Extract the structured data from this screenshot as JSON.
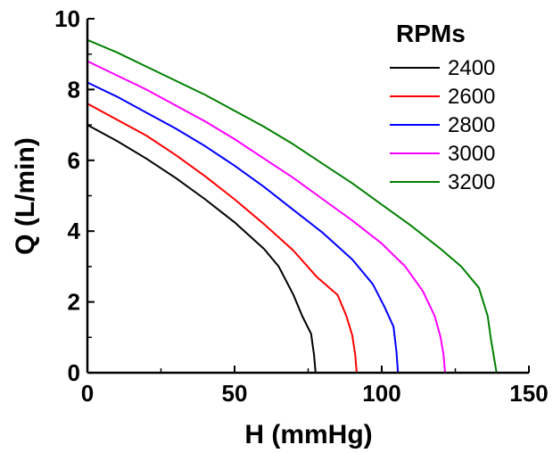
{
  "chart_data": {
    "type": "line",
    "xlabel": "H (mmHg)",
    "ylabel": "Q (L/min)",
    "xlim": [
      0,
      150
    ],
    "ylim": [
      0,
      10
    ],
    "xticks": [
      "0",
      "50",
      "100",
      "150"
    ],
    "yticks": [
      "0",
      "2",
      "4",
      "6",
      "8",
      "10"
    ],
    "grid": false,
    "legend_title": "RPMs",
    "legend_position": "top-right",
    "series": [
      {
        "name": "2400",
        "color": "#000000",
        "points": [
          [
            0,
            7.0
          ],
          [
            10,
            6.55
          ],
          [
            20,
            6.05
          ],
          [
            30,
            5.5
          ],
          [
            40,
            4.9
          ],
          [
            50,
            4.25
          ],
          [
            60,
            3.5
          ],
          [
            65,
            3.0
          ],
          [
            70,
            2.2
          ],
          [
            73,
            1.6
          ],
          [
            76,
            1.1
          ],
          [
            77,
            0.5
          ],
          [
            77.5,
            0
          ]
        ]
      },
      {
        "name": "2600",
        "color": "#ff0000",
        "points": [
          [
            0,
            7.6
          ],
          [
            10,
            7.15
          ],
          [
            20,
            6.7
          ],
          [
            30,
            6.15
          ],
          [
            40,
            5.55
          ],
          [
            50,
            4.9
          ],
          [
            60,
            4.2
          ],
          [
            70,
            3.45
          ],
          [
            78,
            2.7
          ],
          [
            85,
            2.2
          ],
          [
            88,
            1.6
          ],
          [
            90,
            1.05
          ],
          [
            91,
            0.5
          ],
          [
            91.5,
            0
          ]
        ]
      },
      {
        "name": "2800",
        "color": "#0000ff",
        "points": [
          [
            0,
            8.2
          ],
          [
            10,
            7.8
          ],
          [
            20,
            7.35
          ],
          [
            30,
            6.9
          ],
          [
            40,
            6.4
          ],
          [
            50,
            5.85
          ],
          [
            60,
            5.25
          ],
          [
            70,
            4.6
          ],
          [
            80,
            3.95
          ],
          [
            90,
            3.2
          ],
          [
            97,
            2.5
          ],
          [
            101,
            1.85
          ],
          [
            104,
            1.3
          ],
          [
            105,
            0.6
          ],
          [
            105.5,
            0
          ]
        ]
      },
      {
        "name": "3000",
        "color": "#ff00ff",
        "points": [
          [
            0,
            8.8
          ],
          [
            10,
            8.4
          ],
          [
            20,
            8.0
          ],
          [
            30,
            7.55
          ],
          [
            40,
            7.1
          ],
          [
            50,
            6.6
          ],
          [
            60,
            6.05
          ],
          [
            70,
            5.5
          ],
          [
            80,
            4.9
          ],
          [
            90,
            4.3
          ],
          [
            100,
            3.65
          ],
          [
            108,
            3.0
          ],
          [
            114,
            2.3
          ],
          [
            118,
            1.6
          ],
          [
            120,
            1.0
          ],
          [
            121,
            0.5
          ],
          [
            121.5,
            0
          ]
        ]
      },
      {
        "name": "3200",
        "color": "#008000",
        "points": [
          [
            0,
            9.4
          ],
          [
            10,
            9.05
          ],
          [
            20,
            8.65
          ],
          [
            30,
            8.25
          ],
          [
            40,
            7.85
          ],
          [
            50,
            7.4
          ],
          [
            60,
            6.95
          ],
          [
            70,
            6.45
          ],
          [
            80,
            5.9
          ],
          [
            90,
            5.35
          ],
          [
            100,
            4.75
          ],
          [
            110,
            4.15
          ],
          [
            120,
            3.5
          ],
          [
            127,
            3.0
          ],
          [
            133,
            2.4
          ],
          [
            136,
            1.6
          ],
          [
            137,
            1.0
          ],
          [
            138,
            0.5
          ],
          [
            139,
            0
          ]
        ]
      }
    ]
  }
}
